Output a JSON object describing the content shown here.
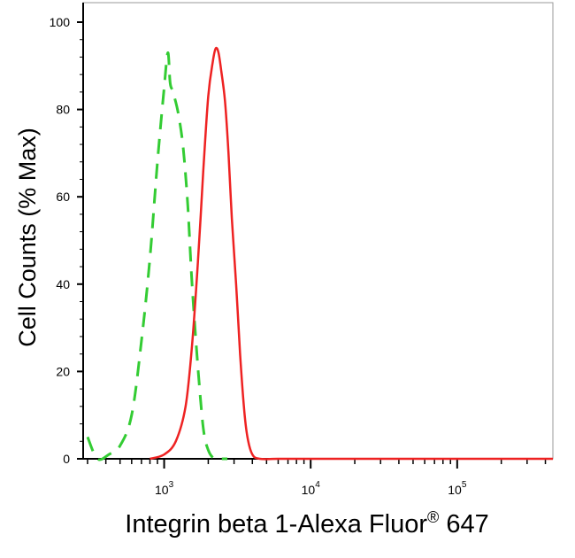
{
  "chart_data": {
    "type": "line",
    "title": "",
    "xlabel": "Integrin beta 1-Alexa Fluor",
    "xlabel_superscript": "®",
    "xlabel_suffix": " 647",
    "ylabel": "Cell Counts (% Max)",
    "x_scale": "log",
    "xlim": [
      280,
      450000
    ],
    "ylim": [
      0,
      100
    ],
    "y_ticks": [
      0,
      20,
      40,
      60,
      80,
      100
    ],
    "x_ticks": [
      {
        "base": "10",
        "exp": "3",
        "value": 1000
      },
      {
        "base": "10",
        "exp": "4",
        "value": 10000
      },
      {
        "base": "10",
        "exp": "5",
        "value": 100000
      }
    ],
    "grid": false,
    "series": [
      {
        "color": "#33cc33",
        "style": "dashed",
        "x": [
          300,
          350,
          420,
          500,
          600,
          700,
          800,
          900,
          1000,
          1060,
          1100,
          1150,
          1250,
          1350,
          1450,
          1550,
          1700,
          1850,
          2000,
          2200,
          2400,
          2700
        ],
        "y": [
          5,
          0,
          1,
          3,
          10,
          27,
          46,
          68,
          85,
          93,
          86,
          84,
          79,
          71,
          58,
          40,
          21,
          7,
          2,
          0,
          0,
          0
        ]
      },
      {
        "color": "#ee2222",
        "style": "solid",
        "x": [
          800,
          1000,
          1200,
          1400,
          1550,
          1700,
          1850,
          2000,
          2150,
          2250,
          2350,
          2450,
          2600,
          2750,
          2900,
          3100,
          3300,
          3500,
          3700,
          4000,
          4500,
          6000,
          10000,
          50000,
          450000
        ],
        "y": [
          0,
          1,
          4,
          12,
          26,
          45,
          66,
          83,
          91,
          94,
          93,
          89,
          82,
          70,
          55,
          40,
          24,
          12,
          5,
          1,
          0,
          0,
          0,
          0,
          0
        ]
      }
    ]
  }
}
